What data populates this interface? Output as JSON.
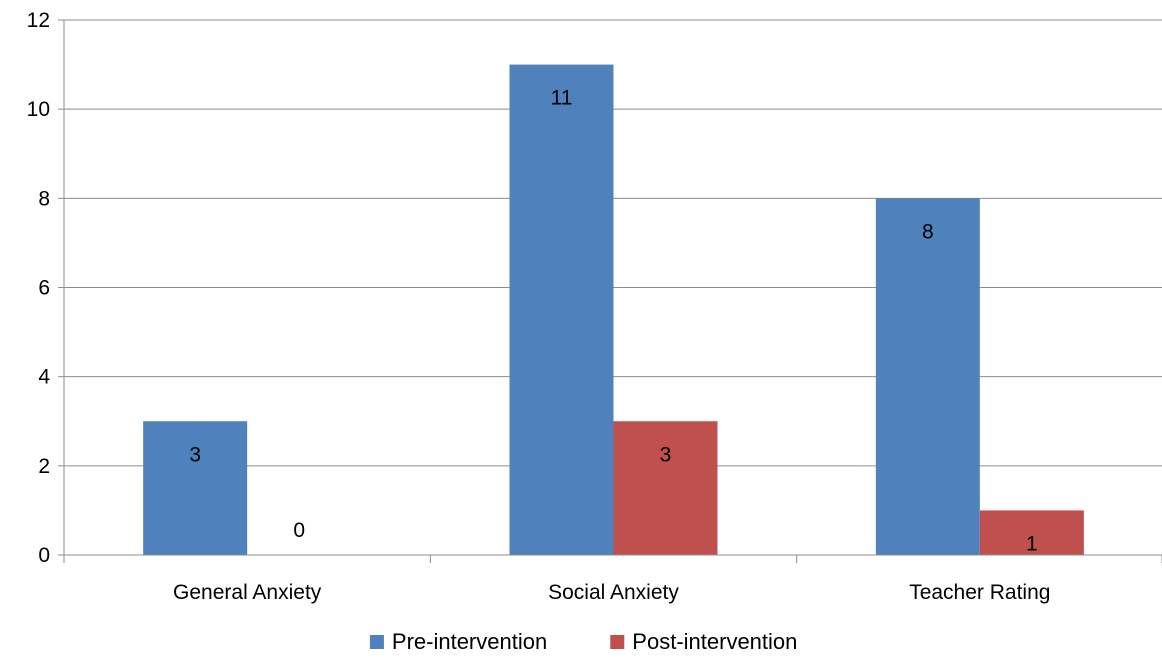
{
  "chart_data": {
    "type": "bar",
    "categories": [
      "General Anxiety",
      "Social Anxiety",
      "Teacher Rating"
    ],
    "series": [
      {
        "name": "Pre-intervention",
        "values": [
          3,
          11,
          8
        ],
        "color": "#4F81BD"
      },
      {
        "name": "Post-intervention",
        "values": [
          0,
          3,
          1
        ],
        "color": "#C0504D"
      }
    ],
    "ylim": [
      0,
      12
    ],
    "yticks": [
      0,
      2,
      4,
      6,
      8,
      10,
      12
    ],
    "grid": true,
    "legend": "bottom",
    "data_labels": true
  }
}
